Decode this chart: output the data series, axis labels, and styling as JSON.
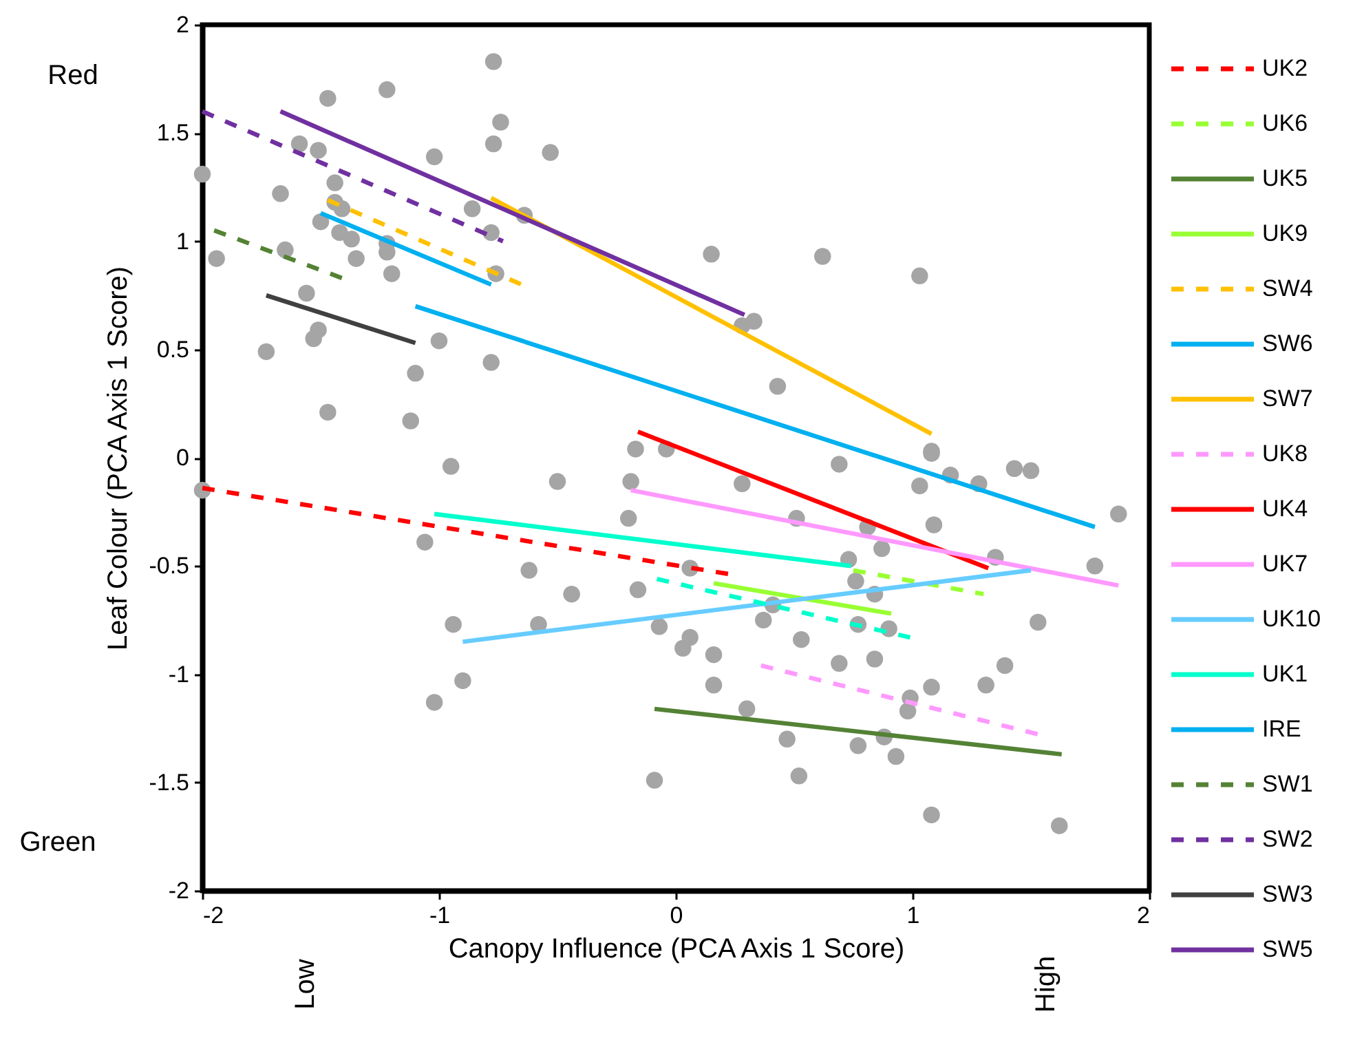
{
  "chart_data": {
    "type": "line",
    "xlabel": "Canopy Influence (PCA Axis 1 Score)",
    "ylabel": "Leaf Colour (PCA Axis 1 Score)",
    "xlim": [
      -2,
      2
    ],
    "xticks": [
      -2,
      -1,
      0,
      1,
      2
    ],
    "ylim": [
      -2,
      2
    ],
    "yticks": [
      -2,
      -1.5,
      -1,
      -0.5,
      0,
      0.5,
      1,
      1.5,
      2
    ],
    "legend": "right",
    "annotations": [
      "Red",
      "Green",
      "Low",
      "High"
    ],
    "series": [
      {
        "type": "scatter",
        "marker": "circle",
        "color": "#a5a5a5",
        "x": [
          -0.77,
          -1.47,
          -1.22,
          -0.74,
          -1.59,
          -1.51,
          -0.77,
          -1.02,
          -0.53,
          -2.0,
          -1.44,
          -1.67,
          -1.44,
          -1.41,
          -0.86,
          -0.64,
          -1.5,
          -0.78,
          -1.42,
          -1.37,
          -1.22,
          -1.65,
          -1.94,
          -1.22,
          -1.35,
          -1.2,
          -0.76,
          -1.56,
          -1.51,
          -1.53,
          -1.0,
          -1.73,
          -0.78,
          -1.1,
          -1.47,
          -1.12,
          -0.17,
          -0.04,
          -0.95,
          0.15,
          0.62,
          1.03,
          0.33,
          0.28,
          0.43,
          1.08,
          -2.0,
          -0.5,
          -0.19,
          -0.2,
          -1.06,
          -0.62,
          -0.44,
          -0.16,
          -0.94,
          -0.58,
          -0.07,
          -0.9,
          -1.02,
          -0.09,
          1.08,
          0.69,
          0.28,
          1.16,
          1.03,
          1.28,
          1.43,
          1.5,
          1.87,
          0.51,
          0.81,
          1.09,
          0.87,
          1.35,
          1.77,
          0.73,
          0.06,
          0.76,
          0.84,
          0.41,
          0.37,
          0.77,
          0.9,
          0.06,
          0.03,
          0.53,
          0.16,
          0.69,
          0.84,
          1.53,
          1.39,
          0.16,
          1.08,
          1.31,
          0.99,
          0.98,
          0.3,
          0.47,
          0.88,
          0.77,
          0.93,
          0.52,
          1.08,
          1.62
        ],
        "values": [
          1.83,
          1.66,
          1.7,
          1.55,
          1.45,
          1.42,
          1.45,
          1.39,
          1.41,
          1.31,
          1.27,
          1.22,
          1.18,
          1.15,
          1.15,
          1.12,
          1.09,
          1.04,
          1.04,
          1.01,
          0.99,
          0.96,
          0.92,
          0.95,
          0.92,
          0.85,
          0.85,
          0.76,
          0.59,
          0.55,
          0.54,
          0.49,
          0.44,
          0.39,
          0.21,
          0.17,
          0.04,
          0.04,
          -0.04,
          0.94,
          0.93,
          0.84,
          0.63,
          0.61,
          0.33,
          0.03,
          -0.15,
          -0.11,
          -0.11,
          -0.28,
          -0.39,
          -0.52,
          -0.63,
          -0.61,
          -0.77,
          -0.77,
          -0.78,
          -1.03,
          -1.13,
          -1.49,
          0.02,
          -0.03,
          -0.12,
          -0.08,
          -0.13,
          -0.12,
          -0.05,
          -0.06,
          -0.26,
          -0.28,
          -0.32,
          -0.31,
          -0.42,
          -0.46,
          -0.5,
          -0.47,
          -0.51,
          -0.57,
          -0.63,
          -0.68,
          -0.75,
          -0.77,
          -0.79,
          -0.83,
          -0.88,
          -0.84,
          -0.91,
          -0.95,
          -0.93,
          -0.76,
          -0.96,
          -1.05,
          -1.06,
          -1.05,
          -1.11,
          -1.17,
          -1.16,
          -1.3,
          -1.29,
          -1.33,
          -1.38,
          -1.47,
          -1.65,
          -1.7
        ]
      },
      {
        "name": "UK2",
        "color": "#ff0000",
        "line_style": "dashed",
        "x": [
          -2.0,
          0.24
        ],
        "values": [
          -0.14,
          -0.54
        ]
      },
      {
        "name": "UK6",
        "color": "#99ff33",
        "line_style": "dashed",
        "x": [
          0.75,
          1.3
        ],
        "values": [
          -0.52,
          -0.63
        ]
      },
      {
        "name": "UK5",
        "color": "#548235",
        "line_style": "solid",
        "x": [
          -0.09,
          1.63
        ],
        "values": [
          -1.16,
          -1.37
        ]
      },
      {
        "name": "UK9",
        "color": "#99ff33",
        "line_style": "solid",
        "x": [
          0.16,
          0.91
        ],
        "values": [
          -0.58,
          -0.72
        ]
      },
      {
        "name": "SW4",
        "color": "#ffc000",
        "line_style": "dashed",
        "x": [
          -1.47,
          -0.63
        ],
        "values": [
          1.19,
          0.79
        ]
      },
      {
        "name": "SW6",
        "color": "#00b0f0",
        "line_style": "solid",
        "x": [
          -1.5,
          -0.78
        ],
        "values": [
          1.13,
          0.8
        ]
      },
      {
        "name": "SW7",
        "color": "#ffc000",
        "line_style": "solid",
        "x": [
          -0.78,
          1.08
        ],
        "values": [
          1.2,
          0.11
        ]
      },
      {
        "name": "UK8",
        "color": "#ff99ff",
        "line_style": "dashed",
        "x": [
          0.36,
          1.54
        ],
        "values": [
          -0.96,
          -1.28
        ]
      },
      {
        "name": "UK4",
        "color": "#ff0000",
        "line_style": "solid",
        "x": [
          -0.16,
          1.32
        ],
        "values": [
          0.12,
          -0.51
        ]
      },
      {
        "name": "UK7",
        "color": "#ff99ff",
        "line_style": "solid",
        "x": [
          -0.19,
          1.87
        ],
        "values": [
          -0.15,
          -0.59
        ]
      },
      {
        "name": "UK10",
        "color": "#66ccff",
        "line_style": "solid",
        "x": [
          -0.9,
          1.5
        ],
        "values": [
          -0.85,
          -0.52
        ]
      },
      {
        "name": "UK1",
        "color": "#00ffcc",
        "line_style": "solid",
        "x": [
          -1.02,
          0.74
        ],
        "values": [
          -0.26,
          -0.5
        ]
      },
      {
        "name": "IRE",
        "color": "#00b0f0",
        "line_style": "solid",
        "x": [
          -1.1,
          1.77
        ],
        "values": [
          0.7,
          -0.32
        ]
      },
      {
        "name": "SW1",
        "color": "#548235",
        "line_style": "dashed",
        "x": [
          -1.95,
          -1.41
        ],
        "values": [
          1.05,
          0.83
        ]
      },
      {
        "name": "SW2",
        "color": "#7030a0",
        "line_style": "dashed",
        "x": [
          -2.0,
          -0.73
        ],
        "values": [
          1.6,
          1.0
        ]
      },
      {
        "name": "SW3",
        "color": "#404040",
        "line_style": "solid",
        "x": [
          -1.73,
          -1.1
        ],
        "values": [
          0.75,
          0.53
        ]
      },
      {
        "name": "SW5",
        "color": "#7030a0",
        "line_style": "solid",
        "x": [
          -1.67,
          0.29
        ],
        "values": [
          1.6,
          0.66
        ]
      },
      {
        "color": "#00ffcc",
        "line_style": "dashed",
        "x": [
          -0.08,
          0.99
        ],
        "values": [
          -0.56,
          -0.83
        ]
      }
    ]
  }
}
